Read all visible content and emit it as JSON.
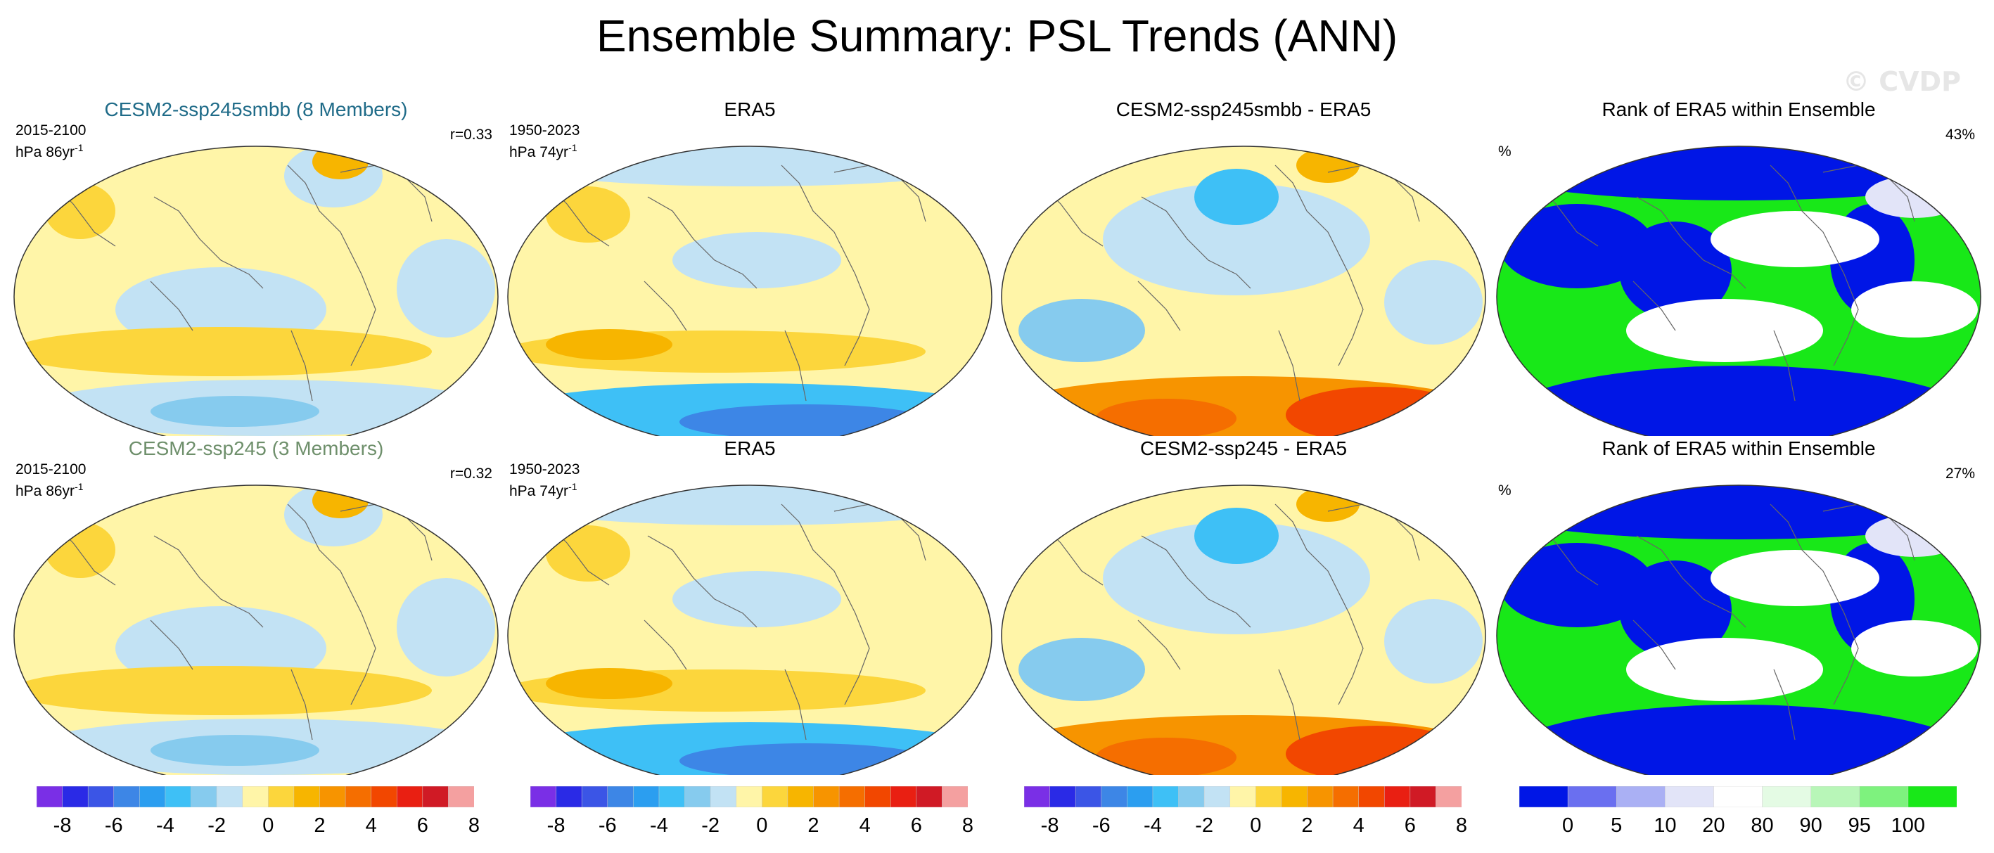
{
  "title": "Ensemble Summary: PSL Trends (ANN)",
  "watermark": "© CVDP",
  "colors": {
    "model1_title": "#1f6b88",
    "model2_title": "#6e8f6b",
    "trend_scale": [
      "#7a2fe6",
      "#2a2ae6",
      "#3b55e6",
      "#3d86e6",
      "#2b9ef0",
      "#3ec0f6",
      "#86cbee",
      "#c2e2f4",
      "#fff5a8",
      "#fcd63c",
      "#f7b500",
      "#f79400",
      "#f56e00",
      "#f24700",
      "#e91f12",
      "#d01a25",
      "#f4a0a0"
    ],
    "rank_scale": [
      "#0016e6",
      "#6a6ff0",
      "#aab0f4",
      "#e2e4f8",
      "#ffffff",
      "#e4fbe4",
      "#b8f6b8",
      "#7ef27e",
      "#18e818"
    ]
  },
  "rows": [
    {
      "panels": [
        {
          "title": "CESM2-ssp245smbb (8 Members)",
          "period": "2015-2100",
          "units": "hPa 86yr",
          "units_sup": "-1",
          "corr": "r=0.33",
          "kind": "model"
        },
        {
          "title": "ERA5",
          "period": "1950-2023",
          "units": "hPa 74yr",
          "units_sup": "-1",
          "corr": "",
          "kind": "obs"
        },
        {
          "title": "CESM2-ssp245smbb - ERA5",
          "period": "",
          "units": "",
          "units_sup": "",
          "corr": "",
          "kind": "diff"
        },
        {
          "title": "Rank of ERA5 within Ensemble",
          "period": "",
          "units": "%",
          "units_sup": "",
          "corr": "43%",
          "kind": "rank"
        }
      ]
    },
    {
      "panels": [
        {
          "title": "CESM2-ssp245 (3 Members)",
          "period": "2015-2100",
          "units": "hPa 86yr",
          "units_sup": "-1",
          "corr": "r=0.32",
          "kind": "model"
        },
        {
          "title": "ERA5",
          "period": "1950-2023",
          "units": "hPa 74yr",
          "units_sup": "-1",
          "corr": "",
          "kind": "obs"
        },
        {
          "title": "CESM2-ssp245 - ERA5",
          "period": "",
          "units": "",
          "units_sup": "",
          "corr": "",
          "kind": "diff"
        },
        {
          "title": "Rank of ERA5 within Ensemble",
          "period": "",
          "units": "%",
          "units_sup": "",
          "corr": "27%",
          "kind": "rank"
        }
      ]
    }
  ],
  "chart_data": {
    "type": "heatmap",
    "variable": "PSL",
    "season": "ANN",
    "colorbars": [
      {
        "levels": [
          -8,
          -7,
          -6,
          -5,
          -4,
          -3,
          -2,
          -1,
          0,
          1,
          2,
          3,
          4,
          5,
          6,
          7,
          8
        ],
        "tick_labels": [
          "-8",
          "-6",
          "-4",
          "-2",
          "0",
          "2",
          "4",
          "6",
          "8"
        ]
      },
      {
        "levels": [
          -8,
          -7,
          -6,
          -5,
          -4,
          -3,
          -2,
          -1,
          0,
          1,
          2,
          3,
          4,
          5,
          6,
          7,
          8
        ],
        "tick_labels": [
          "-8",
          "-6",
          "-4",
          "-2",
          "0",
          "2",
          "4",
          "6",
          "8"
        ]
      },
      {
        "levels": [
          -8,
          -7,
          -6,
          -5,
          -4,
          -3,
          -2,
          -1,
          0,
          1,
          2,
          3,
          4,
          5,
          6,
          7,
          8
        ],
        "tick_labels": [
          "-8",
          "-6",
          "-4",
          "-2",
          "0",
          "2",
          "4",
          "6",
          "8"
        ]
      },
      {
        "levels": [
          0,
          5,
          10,
          20,
          80,
          90,
          95,
          100
        ],
        "tick_labels": [
          "0",
          "5",
          "10",
          "20",
          "80",
          "90",
          "95",
          "100"
        ]
      }
    ],
    "rank_summary": [
      43,
      27
    ],
    "pattern_correlation": [
      0.33,
      0.32
    ]
  }
}
